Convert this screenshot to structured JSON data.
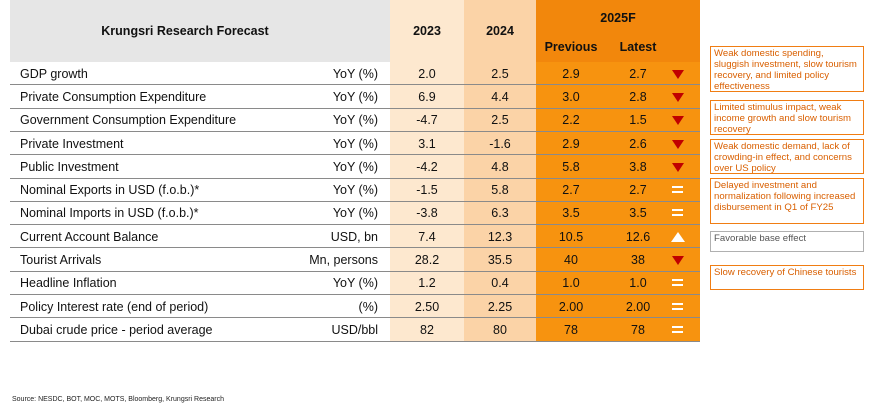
{
  "header": {
    "title": "Krungsri Research Forecast",
    "col_2023": "2023",
    "col_2024": "2024",
    "col_2025f": "2025F",
    "col_previous": "Previous",
    "col_latest": "Latest"
  },
  "rows": [
    {
      "label": "GDP growth",
      "unit": "YoY (%)",
      "y2023": "2.0",
      "y2024": "2.5",
      "previous": "2.9",
      "latest": "2.7",
      "change": "down"
    },
    {
      "label": "Private Consumption Expenditure",
      "unit": "YoY (%)",
      "y2023": "6.9",
      "y2024": "4.4",
      "previous": "3.0",
      "latest": "2.8",
      "change": "down"
    },
    {
      "label": "Government Consumption Expenditure",
      "unit": "YoY (%)",
      "y2023": "-4.7",
      "y2024": "2.5",
      "previous": "2.2",
      "latest": "1.5",
      "change": "down"
    },
    {
      "label": "Private Investment",
      "unit": "YoY (%)",
      "y2023": "3.1",
      "y2024": "-1.6",
      "previous": "2.9",
      "latest": "2.6",
      "change": "down"
    },
    {
      "label": "Public Investment",
      "unit": "YoY (%)",
      "y2023": "-4.2",
      "y2024": "4.8",
      "previous": "5.8",
      "latest": "3.8",
      "change": "down"
    },
    {
      "label": "Nominal Exports in USD (f.o.b.)*",
      "unit": "YoY (%)",
      "y2023": "-1.5",
      "y2024": "5.8",
      "previous": "2.7",
      "latest": "2.7",
      "change": "unchanged"
    },
    {
      "label": "Nominal Imports in USD (f.o.b.)*",
      "unit": "YoY (%)",
      "y2023": "-3.8",
      "y2024": "6.3",
      "previous": "3.5",
      "latest": "3.5",
      "change": "unchanged"
    },
    {
      "label": "Current Account Balance",
      "unit": "USD, bn",
      "y2023": "7.4",
      "y2024": "12.3",
      "previous": "10.5",
      "latest": "12.6",
      "change": "up"
    },
    {
      "label": "Tourist Arrivals",
      "unit": "Mn, persons",
      "y2023": "28.2",
      "y2024": "35.5",
      "previous": "40",
      "latest": "38",
      "change": "down"
    },
    {
      "label": "Headline Inflation",
      "unit": "YoY (%)",
      "y2023": "1.2",
      "y2024": "0.4",
      "previous": "1.0",
      "latest": "1.0",
      "change": "unchanged"
    },
    {
      "label": "Policy Interest rate (end of period)",
      "unit": "(%)",
      "y2023": "2.50",
      "y2024": "2.25",
      "previous": "2.00",
      "latest": "2.00",
      "change": "unchanged"
    },
    {
      "label": "Dubai crude price - period average",
      "unit": "USD/bbl",
      "y2023": "82",
      "y2024": "80",
      "previous": "78",
      "latest": "78",
      "change": "unchanged"
    }
  ],
  "notes": [
    {
      "text": "Weak domestic spending, sluggish investment, slow tourism recovery, and limited policy effectiveness",
      "style": "orange"
    },
    {
      "text": "Limited stimulus impact, weak income growth and slow tourism recovery",
      "style": "orange"
    },
    {
      "text": "Weak domestic demand, lack of crowding-in effect, and concerns over US policy",
      "style": "orange"
    },
    {
      "text": "Delayed investment and normalization following increased disbursement in Q1 of FY25",
      "style": "orange"
    },
    {
      "text": "Favorable base effect",
      "style": "grey"
    },
    {
      "text": "Slow recovery of Chinese tourists",
      "style": "orange"
    }
  ],
  "colors": {
    "header_grey": "#e6e6e6",
    "col_2023": "#fde8cf",
    "col_2024": "#fbd3a7",
    "col_2025f": "#f7930f",
    "col_2025f_header": "#f2870c",
    "down_arrow": "#c00000",
    "note_border": "#f07d13"
  },
  "source": "Source: NESDC, BOT, MOC, MOTS, Bloomberg, Krungsri Research"
}
